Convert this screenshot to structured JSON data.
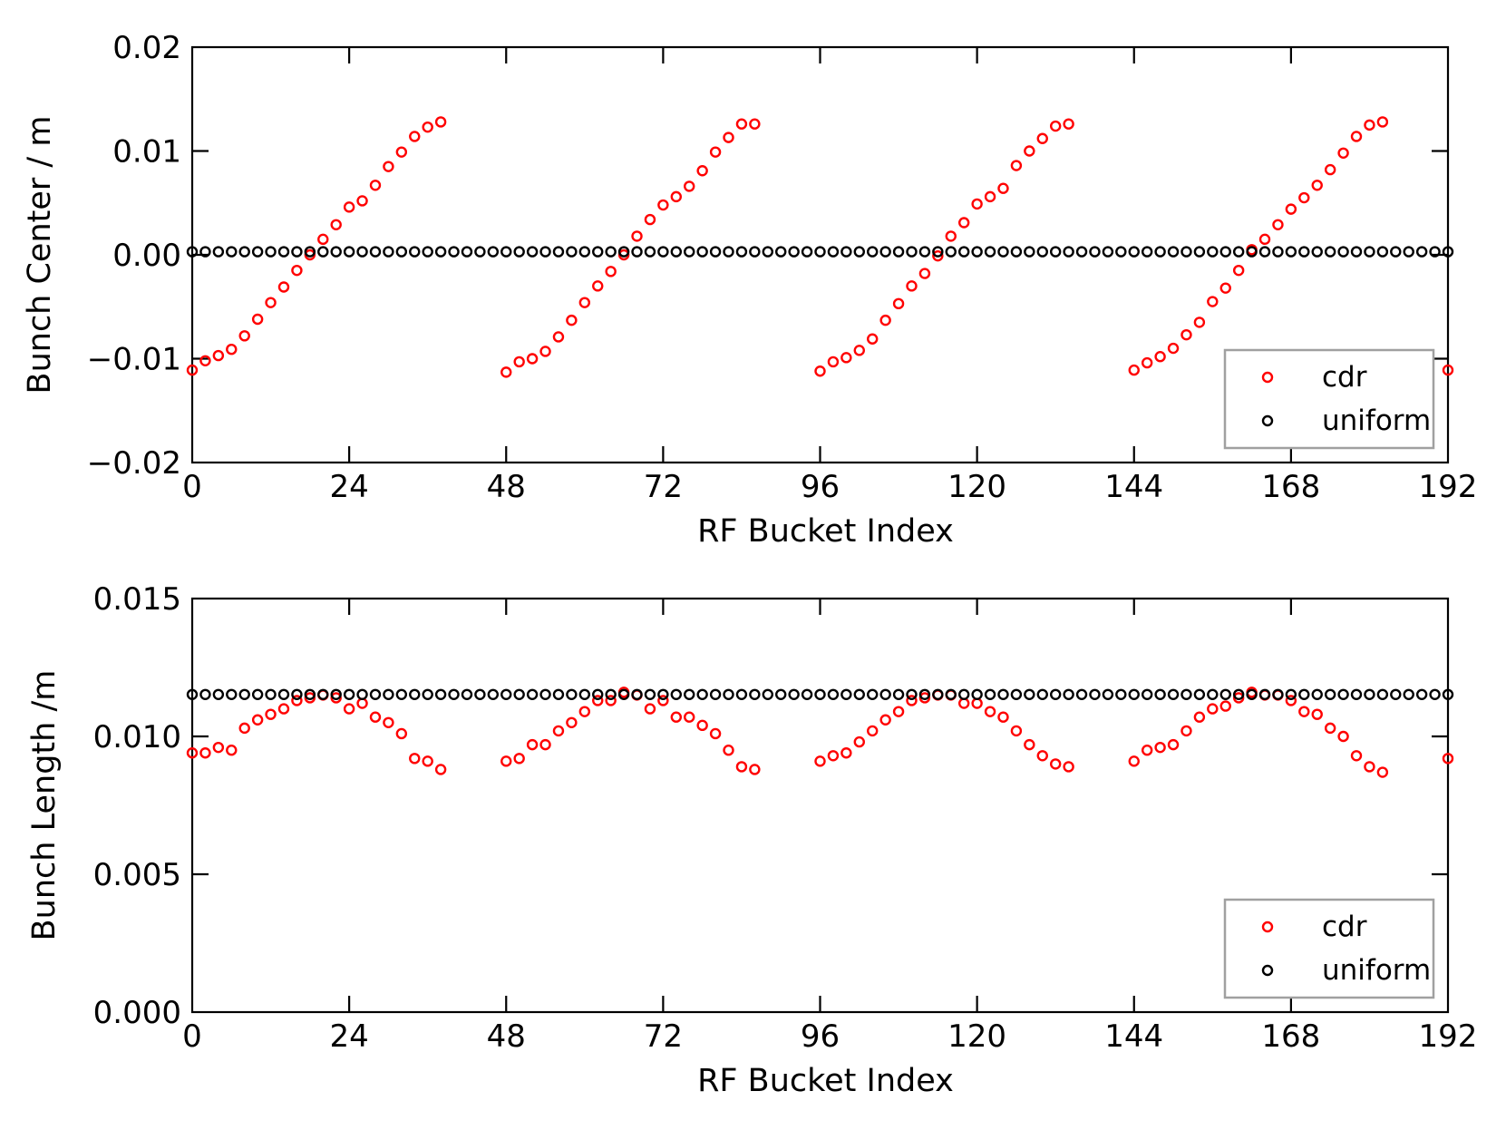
{
  "chart_data": [
    {
      "type": "scatter",
      "title": "",
      "xlabel": "RF Bucket Index",
      "ylabel": "Bunch Center / m",
      "xlim": [
        0,
        192
      ],
      "ylim": [
        -0.02,
        0.02
      ],
      "xticks": [
        0,
        24,
        48,
        72,
        96,
        120,
        144,
        168,
        192
      ],
      "yticks": [
        -0.02,
        -0.01,
        0.0,
        0.01,
        0.02
      ],
      "ytick_labels": [
        "−0.02",
        "−0.01",
        "0.00",
        "0.01",
        "0.02"
      ],
      "grid": false,
      "legend_position": "lower-right",
      "series": [
        {
          "name": "cdr",
          "color": "#ff0000",
          "marker": "open-circle",
          "points": [
            [
              0,
              -0.0111
            ],
            [
              2,
              -0.0102
            ],
            [
              4,
              -0.0097
            ],
            [
              6,
              -0.0091
            ],
            [
              8,
              -0.0078
            ],
            [
              10,
              -0.0062
            ],
            [
              12,
              -0.0046
            ],
            [
              14,
              -0.0031
            ],
            [
              16,
              -0.0015
            ],
            [
              18,
              0.0
            ],
            [
              20,
              0.0015
            ],
            [
              22,
              0.0029
            ],
            [
              24,
              0.0046
            ],
            [
              26,
              0.0052
            ],
            [
              28,
              0.0067
            ],
            [
              30,
              0.0085
            ],
            [
              32,
              0.0099
            ],
            [
              34,
              0.0114
            ],
            [
              36,
              0.0123
            ],
            [
              38,
              0.0128
            ],
            [
              48,
              -0.0113
            ],
            [
              50,
              -0.0103
            ],
            [
              52,
              -0.01
            ],
            [
              54,
              -0.0093
            ],
            [
              56,
              -0.0079
            ],
            [
              58,
              -0.0063
            ],
            [
              60,
              -0.0046
            ],
            [
              62,
              -0.003
            ],
            [
              64,
              -0.0016
            ],
            [
              66,
              0.0
            ],
            [
              68,
              0.0018
            ],
            [
              70,
              0.0034
            ],
            [
              72,
              0.0048
            ],
            [
              74,
              0.0056
            ],
            [
              76,
              0.0066
            ],
            [
              78,
              0.0081
            ],
            [
              80,
              0.0099
            ],
            [
              82,
              0.0113
            ],
            [
              84,
              0.0126
            ],
            [
              86,
              0.0126
            ],
            [
              96,
              -0.0112
            ],
            [
              98,
              -0.0103
            ],
            [
              100,
              -0.0099
            ],
            [
              102,
              -0.0092
            ],
            [
              104,
              -0.0081
            ],
            [
              106,
              -0.0063
            ],
            [
              108,
              -0.0047
            ],
            [
              110,
              -0.003
            ],
            [
              112,
              -0.0018
            ],
            [
              114,
              -0.0001
            ],
            [
              116,
              0.0018
            ],
            [
              118,
              0.0031
            ],
            [
              120,
              0.0049
            ],
            [
              122,
              0.0056
            ],
            [
              124,
              0.0064
            ],
            [
              126,
              0.0086
            ],
            [
              128,
              0.01
            ],
            [
              130,
              0.0112
            ],
            [
              132,
              0.0124
            ],
            [
              134,
              0.0126
            ],
            [
              144,
              -0.0111
            ],
            [
              146,
              -0.0104
            ],
            [
              148,
              -0.0098
            ],
            [
              150,
              -0.009
            ],
            [
              152,
              -0.0077
            ],
            [
              154,
              -0.0065
            ],
            [
              156,
              -0.0045
            ],
            [
              158,
              -0.0032
            ],
            [
              160,
              -0.0015
            ],
            [
              162,
              0.0005
            ],
            [
              164,
              0.0015
            ],
            [
              166,
              0.0029
            ],
            [
              168,
              0.0044
            ],
            [
              170,
              0.0055
            ],
            [
              172,
              0.0067
            ],
            [
              174,
              0.0082
            ],
            [
              176,
              0.0098
            ],
            [
              178,
              0.0114
            ],
            [
              180,
              0.0125
            ],
            [
              182,
              0.0128
            ],
            [
              192,
              -0.0111
            ]
          ]
        },
        {
          "name": "uniform",
          "color": "#000000",
          "marker": "open-circle",
          "x_start": 0,
          "x_end": 192,
          "x_step": 2,
          "y": 0.0003
        }
      ]
    },
    {
      "type": "scatter",
      "title": "",
      "xlabel": "RF Bucket Index",
      "ylabel": "Bunch Length /m",
      "xlim": [
        0,
        192
      ],
      "ylim": [
        0.0,
        0.015
      ],
      "xticks": [
        0,
        24,
        48,
        72,
        96,
        120,
        144,
        168,
        192
      ],
      "yticks": [
        0.0,
        0.005,
        0.01,
        0.015
      ],
      "ytick_labels": [
        "0.000",
        "0.005",
        "0.010",
        "0.015"
      ],
      "grid": false,
      "legend_position": "lower-right",
      "series": [
        {
          "name": "cdr",
          "color": "#ff0000",
          "marker": "open-circle",
          "points": [
            [
              0,
              0.0094
            ],
            [
              2,
              0.0094
            ],
            [
              4,
              0.0096
            ],
            [
              6,
              0.0095
            ],
            [
              8,
              0.0103
            ],
            [
              10,
              0.0106
            ],
            [
              12,
              0.0108
            ],
            [
              14,
              0.011
            ],
            [
              16,
              0.0113
            ],
            [
              18,
              0.0114
            ],
            [
              20,
              0.0115
            ],
            [
              22,
              0.0114
            ],
            [
              24,
              0.011
            ],
            [
              26,
              0.0112
            ],
            [
              28,
              0.0107
            ],
            [
              30,
              0.0105
            ],
            [
              32,
              0.0101
            ],
            [
              34,
              0.0092
            ],
            [
              36,
              0.0091
            ],
            [
              38,
              0.0088
            ],
            [
              48,
              0.0091
            ],
            [
              50,
              0.0092
            ],
            [
              52,
              0.0097
            ],
            [
              54,
              0.0097
            ],
            [
              56,
              0.0102
            ],
            [
              58,
              0.0105
            ],
            [
              60,
              0.0109
            ],
            [
              62,
              0.0113
            ],
            [
              64,
              0.0113
            ],
            [
              66,
              0.0116
            ],
            [
              68,
              0.0115
            ],
            [
              70,
              0.011
            ],
            [
              72,
              0.0113
            ],
            [
              74,
              0.0107
            ],
            [
              76,
              0.0107
            ],
            [
              78,
              0.0104
            ],
            [
              80,
              0.0101
            ],
            [
              82,
              0.0095
            ],
            [
              84,
              0.0089
            ],
            [
              86,
              0.0088
            ],
            [
              96,
              0.0091
            ],
            [
              98,
              0.0093
            ],
            [
              100,
              0.0094
            ],
            [
              102,
              0.0098
            ],
            [
              104,
              0.0102
            ],
            [
              106,
              0.0106
            ],
            [
              108,
              0.0109
            ],
            [
              110,
              0.0113
            ],
            [
              112,
              0.0114
            ],
            [
              114,
              0.0115
            ],
            [
              116,
              0.0115
            ],
            [
              118,
              0.0112
            ],
            [
              120,
              0.0112
            ],
            [
              122,
              0.0109
            ],
            [
              124,
              0.0107
            ],
            [
              126,
              0.0102
            ],
            [
              128,
              0.0097
            ],
            [
              130,
              0.0093
            ],
            [
              132,
              0.009
            ],
            [
              134,
              0.0089
            ],
            [
              144,
              0.0091
            ],
            [
              146,
              0.0095
            ],
            [
              148,
              0.0096
            ],
            [
              150,
              0.0097
            ],
            [
              152,
              0.0102
            ],
            [
              154,
              0.0107
            ],
            [
              156,
              0.011
            ],
            [
              158,
              0.0111
            ],
            [
              160,
              0.0114
            ],
            [
              162,
              0.0116
            ],
            [
              164,
              0.0115
            ],
            [
              166,
              0.0115
            ],
            [
              168,
              0.0113
            ],
            [
              170,
              0.0109
            ],
            [
              172,
              0.0108
            ],
            [
              174,
              0.0103
            ],
            [
              176,
              0.01
            ],
            [
              178,
              0.0093
            ],
            [
              180,
              0.0089
            ],
            [
              182,
              0.0087
            ],
            [
              192,
              0.0092
            ]
          ]
        },
        {
          "name": "uniform",
          "color": "#000000",
          "marker": "open-circle",
          "x_start": 0,
          "x_end": 192,
          "x_step": 2,
          "y": 0.01152
        }
      ]
    }
  ]
}
